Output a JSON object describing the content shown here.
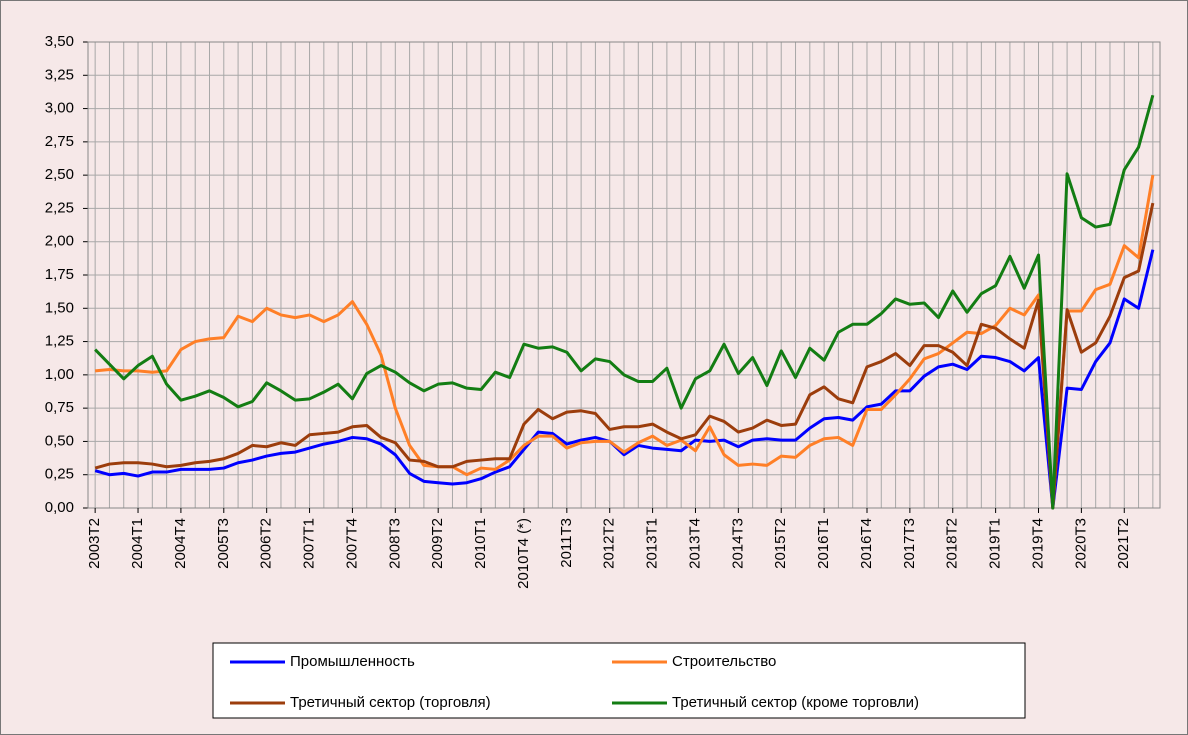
{
  "chart_data": {
    "type": "line",
    "categories": [
      "2003T2",
      null,
      null,
      "2004T1",
      null,
      null,
      "2004T4",
      null,
      null,
      "2005T3",
      null,
      null,
      "2006T2",
      null,
      null,
      "2007T1",
      null,
      null,
      "2007T4",
      null,
      null,
      "2008T3",
      null,
      null,
      "2009T2",
      null,
      null,
      "2010T1",
      null,
      null,
      "2010T4 (*)",
      null,
      null,
      "2011T3",
      null,
      null,
      "2012T2",
      null,
      null,
      "2013T1",
      null,
      null,
      "2013T4",
      null,
      null,
      "2014T3",
      null,
      null,
      "2015T2",
      null,
      null,
      "2016T1",
      null,
      null,
      "2016T4",
      null,
      null,
      "2017T3",
      null,
      null,
      "2018T2",
      null,
      null,
      "2019T1",
      null,
      null,
      "2019T4",
      null,
      null,
      "2020T3",
      null,
      null,
      "2021T2",
      null,
      null
    ],
    "series": [
      {
        "name": "Промышленность",
        "color": "#0000ff",
        "values": [
          0.28,
          0.25,
          0.26,
          0.24,
          0.27,
          0.27,
          0.29,
          0.29,
          0.29,
          0.3,
          0.34,
          0.36,
          0.39,
          0.41,
          0.42,
          0.45,
          0.48,
          0.5,
          0.53,
          0.52,
          0.48,
          0.4,
          0.26,
          0.2,
          0.19,
          0.18,
          0.19,
          0.22,
          0.27,
          0.31,
          0.44,
          0.57,
          0.56,
          0.48,
          0.51,
          0.53,
          0.5,
          0.4,
          0.47,
          0.45,
          0.44,
          0.43,
          0.51,
          0.5,
          0.51,
          0.46,
          0.51,
          0.52,
          0.51,
          0.51,
          0.6,
          0.67,
          0.68,
          0.66,
          0.76,
          0.78,
          0.88,
          0.88,
          0.99,
          1.06,
          1.08,
          1.04,
          1.14,
          1.13,
          1.1,
          1.03,
          1.13,
          0.0,
          0.9,
          0.89,
          1.1,
          1.24,
          1.57,
          1.5,
          1.94
        ]
      },
      {
        "name": "Строительство",
        "color": "#ff7f27",
        "values": [
          1.03,
          1.04,
          1.03,
          1.03,
          1.02,
          1.03,
          1.19,
          1.25,
          1.27,
          1.28,
          1.44,
          1.4,
          1.5,
          1.45,
          1.43,
          1.45,
          1.4,
          1.45,
          1.55,
          1.38,
          1.15,
          0.75,
          0.47,
          0.32,
          0.31,
          0.31,
          0.25,
          0.3,
          0.29,
          0.36,
          0.47,
          0.54,
          0.54,
          0.45,
          0.49,
          0.5,
          0.5,
          0.42,
          0.49,
          0.54,
          0.47,
          0.51,
          0.43,
          0.61,
          0.4,
          0.32,
          0.33,
          0.32,
          0.39,
          0.38,
          0.47,
          0.52,
          0.53,
          0.47,
          0.74,
          0.74,
          0.85,
          0.97,
          1.12,
          1.16,
          1.24,
          1.32,
          1.31,
          1.37,
          1.5,
          1.45,
          1.6,
          0.0,
          1.48,
          1.48,
          1.64,
          1.68,
          1.97,
          1.88,
          2.5
        ]
      },
      {
        "name": "Третичный сектор (торговля)",
        "color": "#9c3d0c",
        "values": [
          0.3,
          0.33,
          0.34,
          0.34,
          0.33,
          0.31,
          0.32,
          0.34,
          0.35,
          0.37,
          0.41,
          0.47,
          0.46,
          0.49,
          0.47,
          0.55,
          0.56,
          0.57,
          0.61,
          0.62,
          0.53,
          0.49,
          0.36,
          0.35,
          0.31,
          0.31,
          0.35,
          0.36,
          0.37,
          0.37,
          0.63,
          0.74,
          0.67,
          0.72,
          0.73,
          0.71,
          0.59,
          0.61,
          0.61,
          0.63,
          0.57,
          0.52,
          0.55,
          0.69,
          0.65,
          0.57,
          0.6,
          0.66,
          0.62,
          0.63,
          0.85,
          0.91,
          0.82,
          0.79,
          1.06,
          1.1,
          1.16,
          1.07,
          1.22,
          1.22,
          1.17,
          1.07,
          1.38,
          1.35,
          1.27,
          1.2,
          1.56,
          0.0,
          1.49,
          1.17,
          1.24,
          1.44,
          1.73,
          1.78,
          2.29
        ]
      },
      {
        "name": "Третичный сектор (кроме торговли)",
        "color": "#137d13",
        "values": [
          1.19,
          1.08,
          0.97,
          1.07,
          1.14,
          0.93,
          0.81,
          0.84,
          0.88,
          0.83,
          0.76,
          0.8,
          0.94,
          0.88,
          0.81,
          0.82,
          0.87,
          0.93,
          0.82,
          1.01,
          1.07,
          1.02,
          0.94,
          0.88,
          0.93,
          0.94,
          0.9,
          0.89,
          1.02,
          0.98,
          1.23,
          1.2,
          1.21,
          1.17,
          1.03,
          1.12,
          1.1,
          1.0,
          0.95,
          0.95,
          1.05,
          0.75,
          0.97,
          1.03,
          1.23,
          1.01,
          1.13,
          0.92,
          1.18,
          0.98,
          1.2,
          1.11,
          1.32,
          1.38,
          1.38,
          1.46,
          1.57,
          1.53,
          1.54,
          1.43,
          1.63,
          1.47,
          1.61,
          1.67,
          1.89,
          1.65,
          1.9,
          0.0,
          2.51,
          2.18,
          2.11,
          2.13,
          2.54,
          2.71,
          3.1
        ]
      }
    ],
    "ylim": [
      0,
      3.5
    ],
    "yticks": [
      {
        "value": 0,
        "label": "0,00"
      },
      {
        "value": 0.25,
        "label": "0,25"
      },
      {
        "value": 0.5,
        "label": "0,50"
      },
      {
        "value": 0.75,
        "label": "0,75"
      },
      {
        "value": 1,
        "label": "1,00"
      },
      {
        "value": 1.25,
        "label": "1,25"
      },
      {
        "value": 1.5,
        "label": "1,50"
      },
      {
        "value": 1.75,
        "label": "1,75"
      },
      {
        "value": 2,
        "label": "2,00"
      },
      {
        "value": 2.25,
        "label": "2,25"
      },
      {
        "value": 2.5,
        "label": "2,50"
      },
      {
        "value": 2.75,
        "label": "2,75"
      },
      {
        "value": 3,
        "label": "3,00"
      },
      {
        "value": 3.25,
        "label": "3,25"
      },
      {
        "value": 3.5,
        "label": "3,50"
      }
    ],
    "grid": true,
    "legend": "bottom"
  }
}
